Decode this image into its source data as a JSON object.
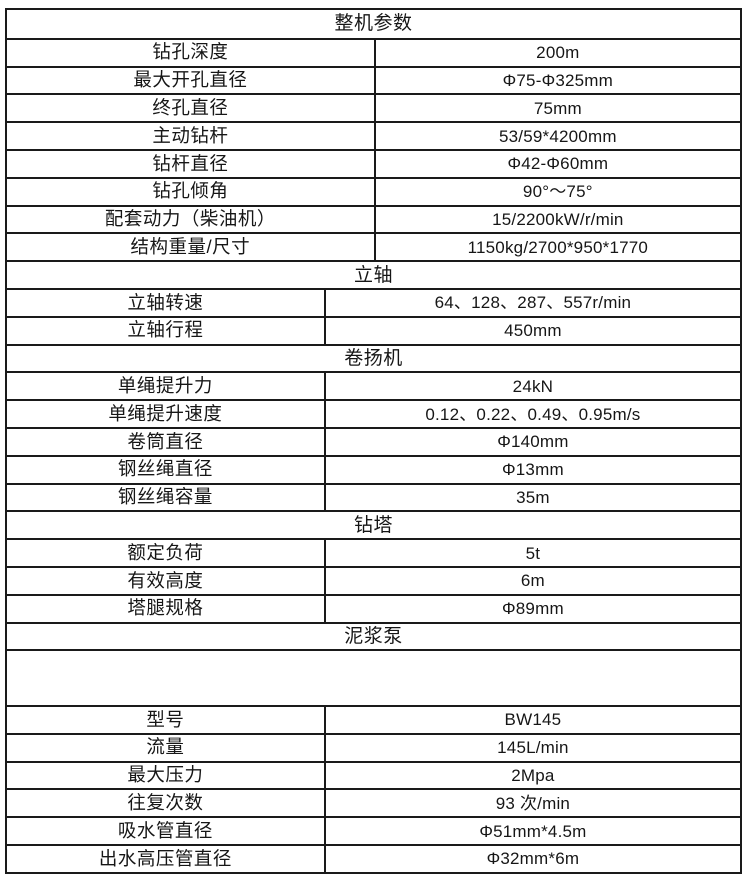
{
  "table": {
    "title": "整机参数",
    "border_color": "#1a1a1a",
    "text_color": "#161616",
    "background_color": "#ffffff",
    "rows": [
      {
        "type": "kv",
        "label": "钻孔深度",
        "value": "200m"
      },
      {
        "type": "kv",
        "label": "最大开孔直径",
        "value": "Φ75-Φ325mm"
      },
      {
        "type": "kv",
        "label": "终孔直径",
        "value": "75mm"
      },
      {
        "type": "kv",
        "label": "主动钻杆",
        "value": "53/59*4200mm"
      },
      {
        "type": "kv",
        "label": "钻杆直径",
        "value": "Φ42-Φ60mm"
      },
      {
        "type": "kv",
        "label": "钻孔倾角",
        "value": "90°～75°"
      },
      {
        "type": "kv",
        "label": "配套动力（柴油机）",
        "value": "15/2200kW/r/min"
      },
      {
        "type": "kv",
        "label": "结构重量/尺寸",
        "value": "1150kg/2700*950*1770"
      },
      {
        "type": "section",
        "label": "立轴"
      },
      {
        "type": "kv",
        "label": "立轴转速",
        "value": "64、128、287、557r/min"
      },
      {
        "type": "kv",
        "label": "立轴行程",
        "value": "450mm"
      },
      {
        "type": "section",
        "label": "卷扬机"
      },
      {
        "type": "kv",
        "label": "单绳提升力",
        "value": "24kN"
      },
      {
        "type": "kv",
        "label": "单绳提升速度",
        "value": "0.12、0.22、0.49、0.95m/s"
      },
      {
        "type": "kv",
        "label": "卷筒直径",
        "value": "Φ140mm"
      },
      {
        "type": "kv",
        "label": "钢丝绳直径",
        "value": "Φ13mm"
      },
      {
        "type": "kv",
        "label": "钢丝绳容量",
        "value": "35m"
      },
      {
        "type": "section",
        "label": "钻塔"
      },
      {
        "type": "kv",
        "label": "额定负荷",
        "value": "5t"
      },
      {
        "type": "kv",
        "label": "有效高度",
        "value": "6m"
      },
      {
        "type": "kv",
        "label": "塔腿规格",
        "value": "Φ89mm"
      },
      {
        "type": "section",
        "label": "泥浆泵"
      },
      {
        "type": "empty",
        "label": "",
        "value": ""
      },
      {
        "type": "kv",
        "label": "型号",
        "value": "BW145"
      },
      {
        "type": "kv",
        "label": "流量",
        "value": "145L/min"
      },
      {
        "type": "kv",
        "label": "最大压力",
        "value": "2Mpa"
      },
      {
        "type": "kv",
        "label": "往复次数",
        "value": "93 次/min"
      },
      {
        "type": "kv",
        "label": "吸水管直径",
        "value": "Φ51mm*4.5m"
      },
      {
        "type": "kv",
        "label": "出水高压管直径",
        "value": "Φ32mm*6m"
      }
    ]
  }
}
